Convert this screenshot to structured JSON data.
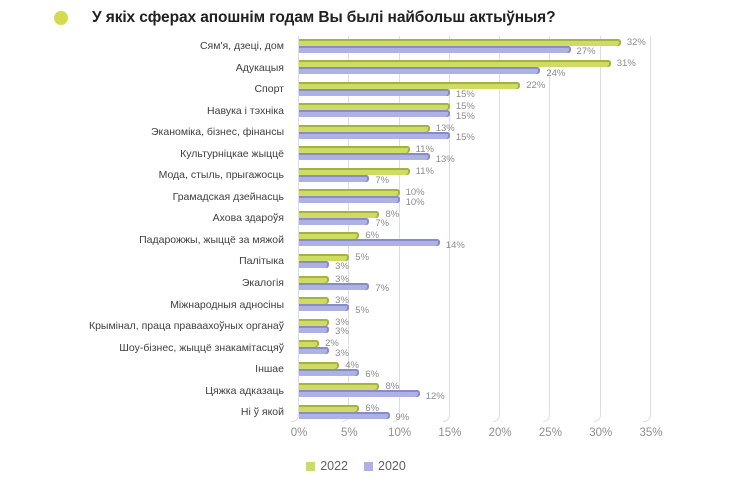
{
  "title": {
    "text": "У якіх сферах апошнім годам Вы былі найбольш актыўныя?"
  },
  "colors": {
    "bullet": "#d2db4e",
    "series_2022_face": "#cfdc63",
    "series_2022_edge": "#a6b23f",
    "series_2020_face": "#aeb2e2",
    "series_2020_edge": "#878cc8",
    "gridline": "#dedede",
    "value_label": "#8c8c8c",
    "category_label": "#3f3f3f",
    "axis_label": "#8f8f8f",
    "legend_label": "#5f5f5f",
    "title_text": "#212121"
  },
  "chart_data": {
    "type": "bar",
    "orientation": "horizontal",
    "title": "У якіх сферах апошнім годам Вы былі найбольш актыўныя?",
    "categories": [
      "Сям'я, дзеці, дом",
      "Адукацыя",
      "Спорт",
      "Навука і тэхніка",
      "Эканоміка, бізнес, фінансы",
      "Культурніцкае жыццё",
      "Мода, стыль, прыгажосць",
      "Грамадская дзейнасць",
      "Ахова здароўя",
      "Падарожжы, жыццё за мяжой",
      "Палітыка",
      "Экалогія",
      "Міжнародныя адносіны",
      "Крымінал, праца праваахоўных органаў",
      "Шоу-бізнес, жыццё знакамітасцяў",
      "Іншае",
      "Цяжка адказаць",
      "Ні ў якой"
    ],
    "series": [
      {
        "name": "2022",
        "color": "#cfdc63",
        "edge_color": "#a6b23f",
        "values": [
          32,
          31,
          22,
          15,
          13,
          11,
          11,
          10,
          8,
          6,
          5,
          3,
          3,
          3,
          2,
          4,
          8,
          6
        ]
      },
      {
        "name": "2020",
        "color": "#aeb2e2",
        "edge_color": "#878cc8",
        "values": [
          27,
          24,
          15,
          15,
          15,
          13,
          7,
          10,
          7,
          14,
          3,
          7,
          5,
          3,
          3,
          6,
          12,
          9
        ]
      }
    ],
    "value_suffix": "%",
    "xlim": [
      0,
      35
    ],
    "x_tick_step": 5,
    "x_tick_labels": [
      "0%",
      "5%",
      "10%",
      "15%",
      "20%",
      "25%",
      "30%",
      "35%"
    ],
    "grid": true,
    "legend_position": "bottom"
  }
}
